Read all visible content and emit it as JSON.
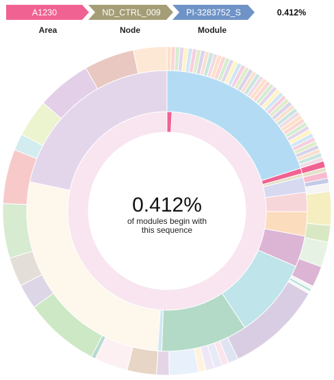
{
  "breadcrumb": {
    "segments": [
      {
        "label": "A1230",
        "caption": "Area",
        "color": "#f06292"
      },
      {
        "label": "ND_CTRL_009",
        "caption": "Node",
        "color": "#a59d76"
      },
      {
        "label": "PI-3283752_S",
        "caption": "Module",
        "color": "#6f93c6"
      }
    ],
    "percentage": "0.412%"
  },
  "center": {
    "percentage": "0.412%",
    "caption_line1": "of modules begin with",
    "caption_line2": "this sequence"
  },
  "chart_data": {
    "type": "sunburst",
    "title": "",
    "levels": [
      "Area",
      "Node",
      "Module"
    ],
    "highlighted_path": [
      "A1230",
      "ND_CTRL_009",
      "PI-3283752_S"
    ],
    "highlighted_share_percent": 0.412,
    "rings": {
      "level1": [
        {
          "value": 0.8,
          "color": "#f06292"
        },
        {
          "value": 99.2,
          "color": "#f8e5ef"
        }
      ],
      "level2": [
        {
          "value": 0.8,
          "color": "#f06292"
        },
        {
          "value": 0.5,
          "color": "#e4e1c8"
        },
        {
          "value": 2.2,
          "color": "#d6d9f0"
        },
        {
          "value": 2.8,
          "color": "#f6d6d8"
        },
        {
          "value": 3.5,
          "color": "#fbdcbd"
        },
        {
          "value": 4.5,
          "color": "#dcb5d5"
        },
        {
          "value": 11.5,
          "color": "#bfe4ea"
        },
        {
          "value": 12.5,
          "color": "#b3dac7"
        },
        {
          "value": 0.6,
          "color": "#cfe9f1"
        },
        {
          "value": 34.2,
          "color": "#fdf7ec"
        },
        {
          "value": 27.2,
          "color": "#e4d6ea"
        }
      ],
      "level3": [
        {
          "value": 0.8,
          "color": "#f06292"
        },
        {
          "value": 0.5,
          "color": "#e4e1c8"
        },
        {
          "value": 0.8,
          "color": "#f8bbd0"
        },
        {
          "value": 0.6,
          "color": "#c5cae9"
        },
        {
          "value": 1.0,
          "color": "#f5f5f5"
        },
        {
          "value": 4.0,
          "color": "#f4eec0"
        },
        {
          "value": 2.0,
          "color": "#d9e8c4"
        },
        {
          "value": 3.0,
          "color": "#e6f2e4"
        },
        {
          "value": 2.5,
          "color": "#dcb5d5"
        },
        {
          "value": 0.4,
          "color": "#f5f5f5"
        },
        {
          "value": 0.3,
          "color": "#b2dfdb"
        },
        {
          "value": 0.3,
          "color": "#f5f5f5"
        },
        {
          "value": 11.5,
          "color": "#d9cde3"
        },
        {
          "value": 1.2,
          "color": "#dfe4f3"
        },
        {
          "value": 0.8,
          "color": "#fce4ec"
        },
        {
          "value": 1.0,
          "color": "#e8eaf6"
        },
        {
          "value": 1.0,
          "color": "#ede7f6"
        },
        {
          "value": 0.9,
          "color": "#fff3e0"
        },
        {
          "value": 3.5,
          "color": "#e8f0fb"
        },
        {
          "value": 1.5,
          "color": "#e3d4e6"
        },
        {
          "value": 3.5,
          "color": "#e7d5c6"
        },
        {
          "value": 4.0,
          "color": "#fdf0f3"
        },
        {
          "value": 0.5,
          "color": "#b7d9d2"
        },
        {
          "value": 9.0,
          "color": "#cde8c4"
        },
        {
          "value": 3.0,
          "color": "#dcd6e6"
        },
        {
          "value": 3.5,
          "color": "#e4ded9"
        },
        {
          "value": 6.5,
          "color": "#d6ebd0"
        },
        {
          "value": 6.5,
          "color": "#f7c9c9"
        },
        {
          "value": 2.0,
          "color": "#d3ecef"
        },
        {
          "value": 4.5,
          "color": "#ecf3cf"
        },
        {
          "value": 6.5,
          "color": "#e3d0e8"
        },
        {
          "value": 6.0,
          "color": "#e8c8c0"
        },
        {
          "value": 4.0,
          "color": "#fde8d6"
        }
      ],
      "right_slice": {
        "value": 25.2,
        "color": "#b3dcf4",
        "children_palette": [
          "#fde0c5",
          "#fcd5d5",
          "#d4edd0",
          "#e4d6ea",
          "#fff3c4",
          "#d0e6f5",
          "#f5cfe0",
          "#e0ecc8",
          "#d8d3ea",
          "#f9e0cf",
          "#c8e6e0",
          "#f1dbe7"
        ]
      }
    }
  }
}
